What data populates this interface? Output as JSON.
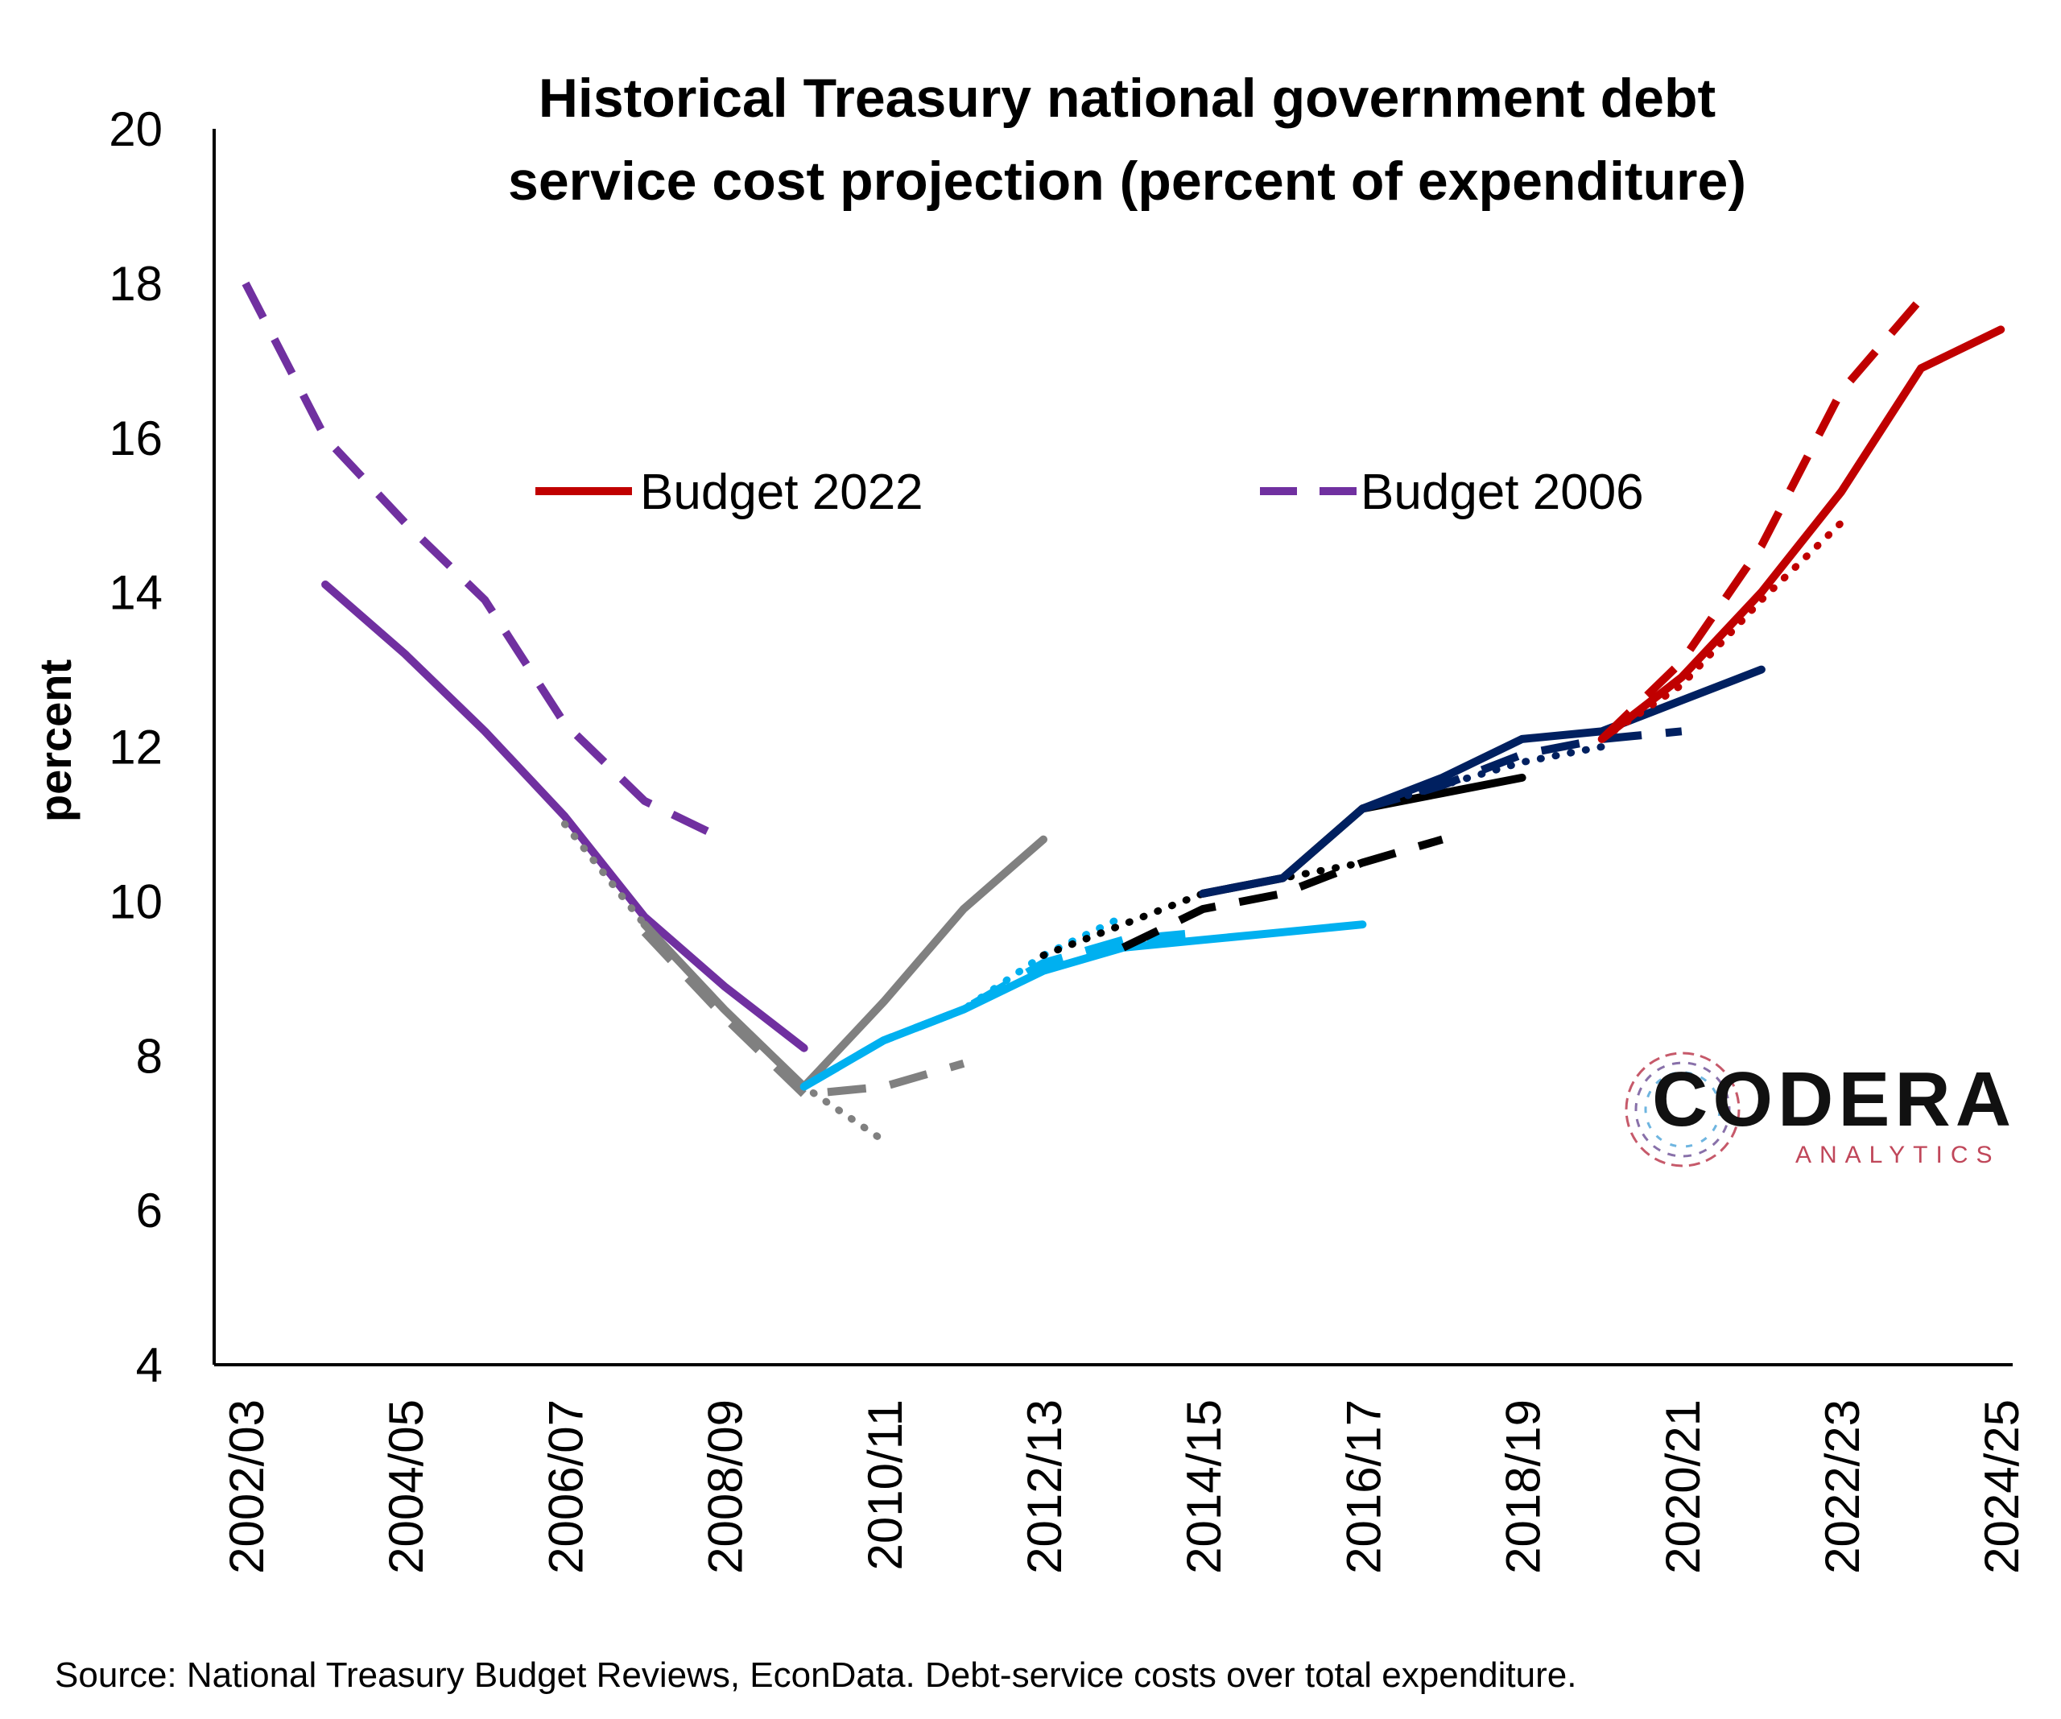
{
  "chart_data": {
    "type": "line",
    "title_lines": [
      "Historical Treasury national government debt",
      "service cost projection (percent of expenditure)"
    ],
    "ylabel": "percent",
    "xlabel": "",
    "ylim": [
      4,
      20
    ],
    "yticks": [
      4,
      6,
      8,
      10,
      12,
      14,
      16,
      18,
      20
    ],
    "categories": [
      "2002/03",
      "2003/04",
      "2004/05",
      "2005/06",
      "2006/07",
      "2007/08",
      "2008/09",
      "2009/10",
      "2010/11",
      "2011/12",
      "2012/13",
      "2013/14",
      "2014/15",
      "2015/16",
      "2016/17",
      "2017/18",
      "2018/19",
      "2019/20",
      "2020/21",
      "2021/22",
      "2022/23",
      "2023/24",
      "2024/25"
    ],
    "tick_labels": [
      "2002/03",
      "2004/05",
      "2006/07",
      "2008/09",
      "2010/11",
      "2012/13",
      "2014/15",
      "2016/17",
      "2018/19",
      "2020/21",
      "2022/23",
      "2024/25"
    ],
    "legend": [
      {
        "label": "Budget 2022",
        "color": "#c00000",
        "style": "solid"
      },
      {
        "label": "Budget 2006",
        "color": "#7030a0",
        "style": "dashed"
      }
    ],
    "series": [
      {
        "color": "#7030a0",
        "style": "dashed",
        "x": [
          "2002/03",
          "2003/04",
          "2004/05",
          "2005/06",
          "2006/07",
          "2007/08",
          "2008/09"
        ],
        "values": [
          18.0,
          16.0,
          14.9,
          13.9,
          12.3,
          11.3,
          10.8
        ]
      },
      {
        "color": "#7030a0",
        "style": "solid",
        "x": [
          "2003/04",
          "2004/05",
          "2005/06",
          "2006/07",
          "2007/08",
          "2008/09",
          "2009/10"
        ],
        "values": [
          14.1,
          13.2,
          12.2,
          11.1,
          9.8,
          8.9,
          8.1
        ]
      },
      {
        "color": "#808080",
        "style": "dotted",
        "x": [
          "2006/07",
          "2007/08",
          "2008/09",
          "2009/10",
          "2010/11"
        ],
        "values": [
          11.0,
          9.7,
          8.6,
          7.6,
          6.9
        ]
      },
      {
        "color": "#808080",
        "style": "dashed",
        "x": [
          "2007/08",
          "2008/09",
          "2009/10",
          "2010/11",
          "2011/12"
        ],
        "values": [
          9.6,
          8.5,
          7.5,
          7.6,
          7.9
        ]
      },
      {
        "color": "#808080",
        "style": "solid",
        "x": [
          "2007/08",
          "2008/09",
          "2009/10",
          "2010/11",
          "2011/12",
          "2012/13"
        ],
        "values": [
          9.7,
          8.6,
          7.6,
          8.7,
          9.9,
          10.8
        ]
      },
      {
        "color": "#00b0f0",
        "style": "dotted",
        "x": [
          "2009/10",
          "2010/11",
          "2011/12",
          "2012/13",
          "2013/14"
        ],
        "values": [
          7.6,
          8.2,
          8.6,
          9.3,
          9.8
        ]
      },
      {
        "color": "#00b0f0",
        "style": "dashed",
        "x": [
          "2009/10",
          "2010/11",
          "2011/12",
          "2012/13",
          "2013/14",
          "2014/15"
        ],
        "values": [
          7.6,
          8.2,
          8.6,
          9.2,
          9.5,
          9.6
        ]
      },
      {
        "color": "#00b0f0",
        "style": "solid",
        "x": [
          "2009/10",
          "2010/11",
          "2011/12",
          "2012/13",
          "2013/14",
          "2014/15",
          "2015/16",
          "2016/17"
        ],
        "values": [
          7.6,
          8.2,
          8.6,
          9.1,
          9.4,
          9.5,
          9.6,
          9.7
        ]
      },
      {
        "color": "#000000",
        "style": "dotted",
        "x": [
          "2012/13",
          "2013/14",
          "2014/15",
          "2015/16",
          "2016/17"
        ],
        "values": [
          9.3,
          9.7,
          10.1,
          10.3,
          10.5
        ]
      },
      {
        "color": "#000000",
        "style": "dashed",
        "x": [
          "2013/14",
          "2014/15",
          "2015/16",
          "2016/17",
          "2017/18"
        ],
        "values": [
          9.4,
          9.9,
          10.1,
          10.5,
          10.8
        ]
      },
      {
        "color": "#000000",
        "style": "solid",
        "x": [
          "2014/15",
          "2015/16",
          "2016/17",
          "2017/18",
          "2018/19"
        ],
        "values": [
          10.1,
          10.3,
          11.2,
          11.4,
          11.6
        ]
      },
      {
        "color": "#002060",
        "style": "dotted",
        "x": [
          "2015/16",
          "2016/17",
          "2017/18",
          "2018/19",
          "2019/20"
        ],
        "values": [
          10.3,
          11.2,
          11.5,
          11.8,
          12.0
        ]
      },
      {
        "color": "#002060",
        "style": "dashed",
        "x": [
          "2016/17",
          "2017/18",
          "2018/19",
          "2019/20",
          "2020/21"
        ],
        "values": [
          11.2,
          11.5,
          11.9,
          12.1,
          12.2
        ]
      },
      {
        "color": "#002060",
        "style": "solid",
        "x": [
          "2014/15",
          "2015/16",
          "2016/17",
          "2017/18",
          "2018/19",
          "2019/20",
          "2020/21",
          "2021/22"
        ],
        "values": [
          10.1,
          10.3,
          11.2,
          11.6,
          12.1,
          12.2,
          12.6,
          13.0
        ]
      },
      {
        "color": "#c00000",
        "style": "dotted",
        "x": [
          "2019/20",
          "2020/21",
          "2021/22",
          "2022/23"
        ],
        "values": [
          12.1,
          12.8,
          13.9,
          14.9
        ]
      },
      {
        "color": "#c00000",
        "style": "dashed",
        "x": [
          "2019/20",
          "2020/21",
          "2021/22",
          "2022/23",
          "2023/24"
        ],
        "values": [
          12.1,
          13.1,
          14.6,
          16.6,
          17.8
        ]
      },
      {
        "color": "#c00000",
        "style": "solid",
        "x": [
          "2019/20",
          "2020/21",
          "2021/22",
          "2022/23",
          "2023/24",
          "2024/25"
        ],
        "values": [
          12.1,
          12.9,
          14.0,
          15.3,
          16.9,
          17.4
        ]
      }
    ],
    "grid": false
  },
  "source_text": "Source: National Treasury Budget Reviews, EconData. Debt-service costs over total expenditure.",
  "logo": {
    "main": "CODERA",
    "sub": "ANALYTICS",
    "colors": {
      "ring1": "#c0475a",
      "ring2": "#4aa3d8",
      "ring3": "#6a4c93"
    }
  }
}
